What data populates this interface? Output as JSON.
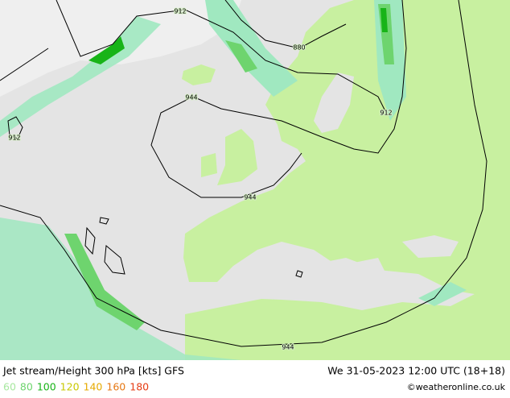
{
  "map": {
    "title": "Jet stream/Height 300 hPa [kts] GFS",
    "valid_time": "We 31-05-2023 12:00 UTC (18+18)",
    "copyright": "©weatheronline.co.uk",
    "legend": [
      {
        "value": 60,
        "color": "#a8e8a0"
      },
      {
        "value": 80,
        "color": "#6ed46e"
      },
      {
        "value": 100,
        "color": "#18b418"
      },
      {
        "value": 120,
        "color": "#c8c800"
      },
      {
        "value": 140,
        "color": "#e6aa00"
      },
      {
        "value": 160,
        "color": "#e67814"
      },
      {
        "value": 180,
        "color": "#e63c14"
      }
    ],
    "contour_labels": [
      912,
      880,
      912,
      912,
      944,
      944,
      944
    ]
  }
}
